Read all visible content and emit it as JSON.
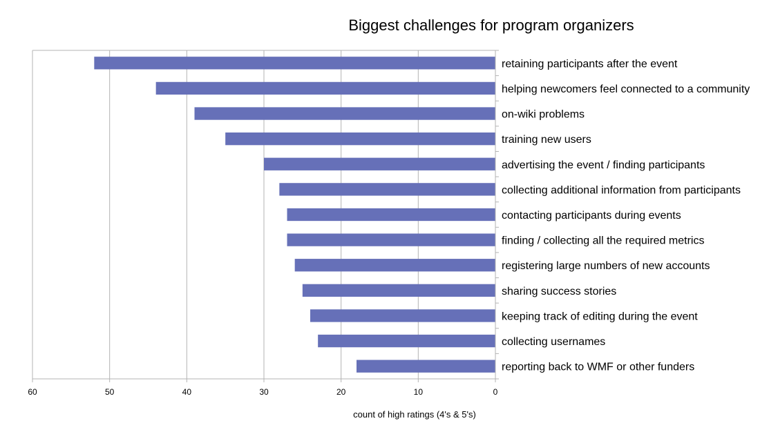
{
  "chart_data": {
    "type": "bar",
    "orientation": "horizontal",
    "title": "Biggest challenges for program organizers",
    "xlabel": "count of high ratings (4's & 5's)",
    "ylabel": "",
    "xlim": [
      0,
      60
    ],
    "x_reversed": true,
    "x_ticks": [
      60,
      50,
      40,
      30,
      20,
      10,
      0
    ],
    "grid": true,
    "legend": "none",
    "bar_color": "#6670b8",
    "categories": [
      "retaining participants after the event",
      "helping newcomers feel connected to a community",
      "on-wiki problems",
      "training new users",
      "advertising the event / finding participants",
      "collecting additional information from participants",
      "contacting participants during events",
      "finding / collecting all the required metrics",
      "registering large numbers of new accounts",
      "sharing success stories",
      "keeping track of editing during the event",
      "collecting usernames",
      "reporting back to WMF or other funders"
    ],
    "values": [
      52,
      44,
      39,
      35,
      30,
      28,
      27,
      27,
      26,
      25,
      24,
      23,
      18
    ]
  }
}
